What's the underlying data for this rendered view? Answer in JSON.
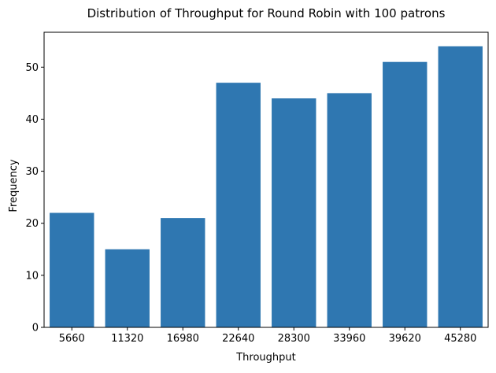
{
  "chart_data": {
    "type": "bar",
    "title": "Distribution of Throughput for Round Robin with 100 patrons",
    "xlabel": "Throughput",
    "ylabel": "Frequency",
    "categories": [
      "5660",
      "11320",
      "16980",
      "22640",
      "28300",
      "33960",
      "39620",
      "45280"
    ],
    "values": [
      22,
      15,
      21,
      47,
      44,
      45,
      51,
      54
    ],
    "ylim": [
      0,
      56.7
    ],
    "yticks": [
      0,
      10,
      20,
      30,
      40,
      50
    ],
    "bar_color": "#2f77b1",
    "grid": false,
    "legend": "none"
  }
}
